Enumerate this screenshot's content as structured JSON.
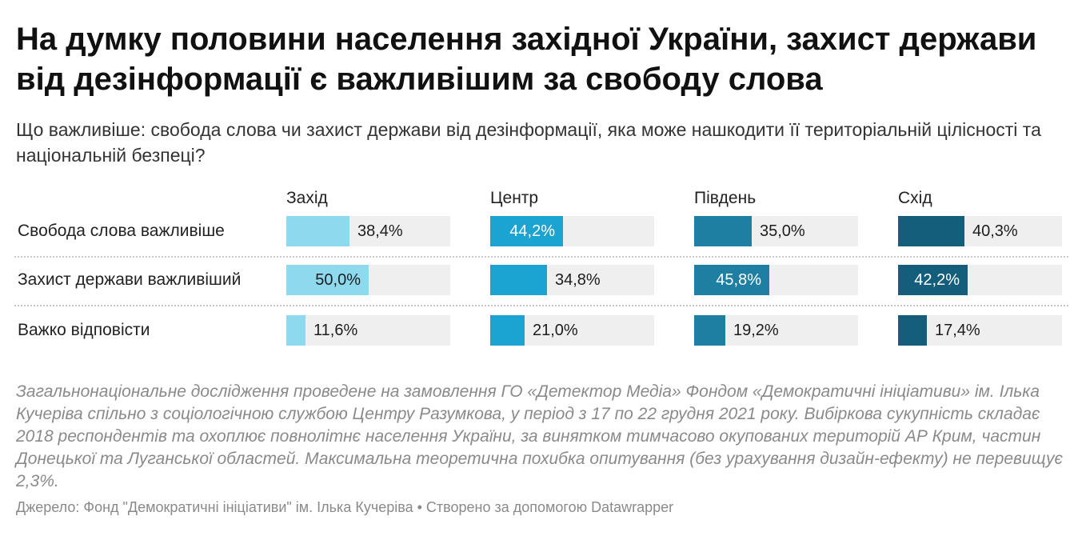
{
  "title": "На думку половини населення західної України, захист держави від дезінформації є важливішим за свободу слова",
  "subtitle": "Що важливіше: свобода слова чи захист держави від дезінформації, яка може нашкодити її територіальній цілісності та національній безпеці?",
  "notes": "Загальнонаціональне дослідження проведене на замовлення ГО «Детектор Медіа» Фондом «Демократичні ініціативи» ім. Ілька Кучеріва спільно з соціологічною службою Центру Разумкова, у період з 17 по 22 грудня 2021 року. Вибіркова сукупність складає 2018 респондентів та охоплює повнолітнє населення України, за винятком тимчасово окупованих територій АР Крим, частин Донецької та Луганської областей. Максимальна теоретична похибка опитування (без урахування дизайн-ефекту) не перевищує 2,3%.",
  "source": "Джерело: Фонд \"Демократичні ініціативи\" ім. Ілька Кучеріва • Створено за допомогою Datawrapper",
  "chart_data": {
    "type": "bar",
    "categories": [
      "Свобода слова важливіше",
      "Захист держави важливіший",
      "Важко відповісти"
    ],
    "series": [
      {
        "name": "Захід",
        "color": "#8fd9ef",
        "values": [
          38.4,
          50.0,
          11.6
        ],
        "labels": [
          "38,4%",
          "50,0%",
          "11,6%"
        ]
      },
      {
        "name": "Центр",
        "color": "#1ba3d2",
        "values": [
          44.2,
          34.8,
          21.0
        ],
        "labels": [
          "44,2%",
          "34,8%",
          "21,0%"
        ]
      },
      {
        "name": "Південь",
        "color": "#1f7fa2",
        "values": [
          35.0,
          45.8,
          19.2
        ],
        "labels": [
          "35,0%",
          "45,8%",
          "19,2%"
        ]
      },
      {
        "name": "Схід",
        "color": "#145e7c",
        "values": [
          40.3,
          42.2,
          17.4
        ],
        "labels": [
          "40,3%",
          "42,2%",
          "17,4%"
        ]
      }
    ],
    "xlim": [
      0,
      100
    ],
    "grid": false,
    "legend": "column-headers"
  }
}
